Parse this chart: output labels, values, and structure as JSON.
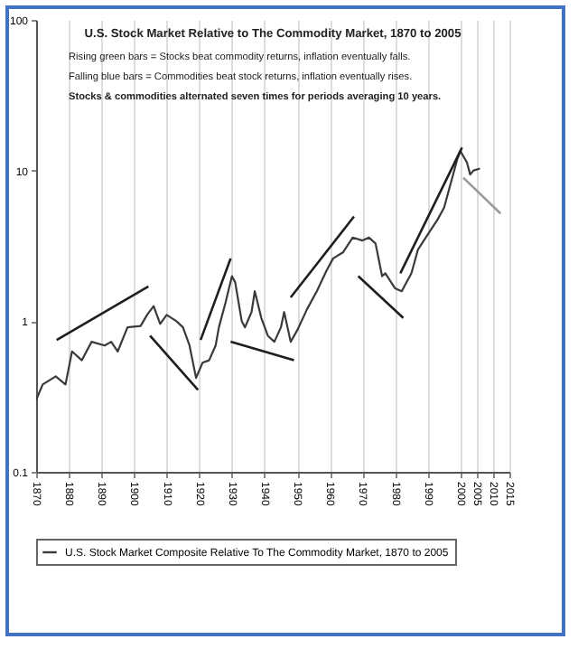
{
  "chart_data": {
    "type": "line",
    "title": "U.S. Stock Market Relative to The Commodity Market, 1870 to 2005",
    "annotations": [
      "Rising green bars = Stocks beat commodity returns, inflation eventually falls.",
      "Falling blue bars = Commodities beat stock returns, inflation eventually rises.",
      "Stocks & commodities alternated seven times for periods averaging 10 years."
    ],
    "log": "y",
    "grid": "x",
    "legend": "bottom",
    "line_style": "solid",
    "xlim": [
      1870,
      2015
    ],
    "xticks": [
      1870,
      1880,
      1890,
      1900,
      1910,
      1920,
      1930,
      1940,
      1950,
      1960,
      1970,
      1980,
      1990,
      2000,
      2005,
      2010,
      2015
    ],
    "ylim": [
      0.1,
      100
    ],
    "yticks": [
      0.1,
      1,
      10,
      100
    ],
    "series": [
      {
        "name": "U.S. Stock Market Composite Relative To The Commodity Market, 1870 to 2005",
        "color": "#3a3a3a",
        "x": [
          1870,
          1872,
          1876,
          1879,
          1881,
          1884,
          1887,
          1891,
          1893,
          1895,
          1898,
          1902,
          1904,
          1906,
          1908,
          1910,
          1913,
          1915,
          1917,
          1919,
          1921,
          1923,
          1925,
          1926,
          1928,
          1930,
          1931,
          1933,
          1934,
          1936,
          1937,
          1939,
          1941,
          1943,
          1945,
          1946,
          1948,
          1950,
          1953,
          1956,
          1959,
          1961,
          1964,
          1967,
          1970,
          1972,
          1974,
          1976,
          1977,
          1980,
          1982,
          1985,
          1987,
          1990,
          1993,
          1995,
          1997,
          1999,
          2000,
          2002,
          2003,
          2004,
          2006
        ],
        "values": [
          0.3,
          0.38,
          0.43,
          0.38,
          0.63,
          0.55,
          0.73,
          0.69,
          0.73,
          0.63,
          0.91,
          0.93,
          1.1,
          1.26,
          0.96,
          1.1,
          1.0,
          0.91,
          0.69,
          0.42,
          0.53,
          0.55,
          0.69,
          0.91,
          1.32,
          1.99,
          1.81,
          1.0,
          0.91,
          1.15,
          1.58,
          1.05,
          0.8,
          0.73,
          0.91,
          1.15,
          0.73,
          0.87,
          1.2,
          1.58,
          2.17,
          2.61,
          2.86,
          3.59,
          3.43,
          3.59,
          3.28,
          1.99,
          2.08,
          1.65,
          1.58,
          2.08,
          2.99,
          3.76,
          4.73,
          5.67,
          8.18,
          11.8,
          13.5,
          11.3,
          9.4,
          10.0,
          10.3
        ]
      },
      {
        "type": "line",
        "color": "#1e1e1e",
        "x": [
          1876.3,
          1904.4
        ],
        "values": [
          0.75,
          1.7
        ]
      },
      {
        "type": "line",
        "color": "#1e1e1e",
        "x": [
          1904.9,
          1919.6
        ],
        "values": [
          0.8,
          0.35
        ]
      },
      {
        "type": "line",
        "color": "#1e1e1e",
        "x": [
          1920.4,
          1929.6
        ],
        "values": [
          0.75,
          2.61
        ]
      },
      {
        "type": "line",
        "color": "#1e1e1e",
        "x": [
          1929.6,
          1949
        ],
        "values": [
          0.73,
          0.55
        ]
      },
      {
        "type": "line",
        "color": "#1e1e1e",
        "x": [
          1948,
          1967.4
        ],
        "values": [
          1.44,
          4.95
        ]
      },
      {
        "type": "line",
        "color": "#1e1e1e",
        "x": [
          1968.7,
          1982.5
        ],
        "values": [
          1.99,
          1.05
        ]
      },
      {
        "type": "line",
        "color": "#1e1e1e",
        "x": [
          1981.6,
          2000.5
        ],
        "values": [
          2.08,
          14.2
        ]
      },
      {
        "type": "line",
        "color": "#9a9a9a",
        "x": [
          2000.9,
          2012.3
        ],
        "values": [
          8.96,
          5.18
        ]
      }
    ]
  }
}
